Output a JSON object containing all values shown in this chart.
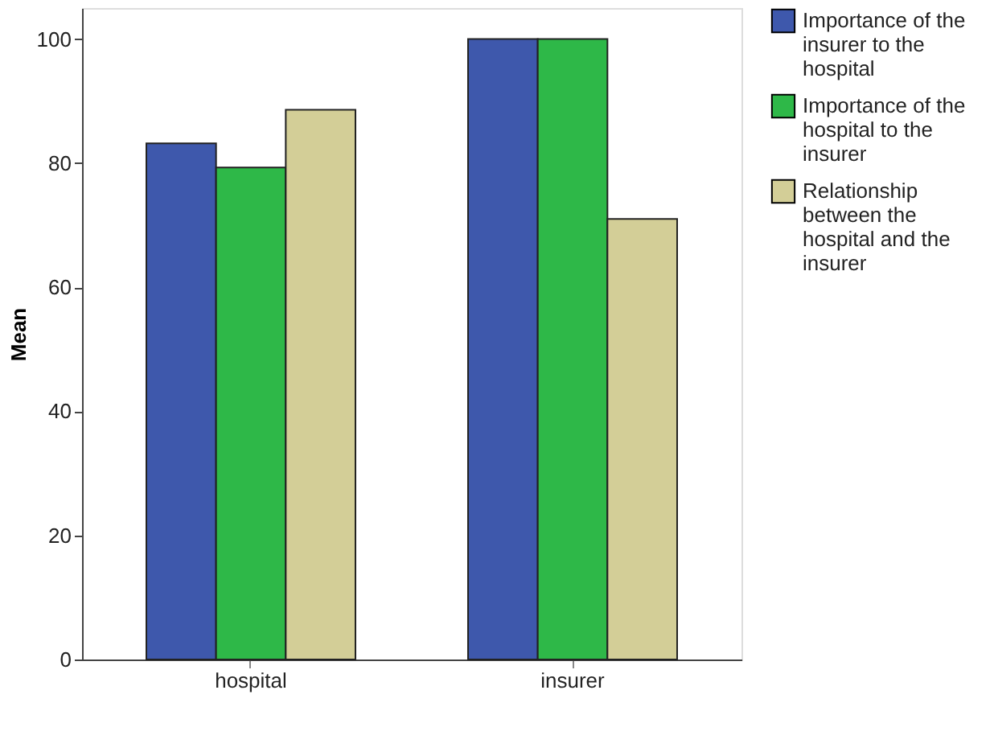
{
  "chart_data": {
    "type": "bar",
    "ylabel": "Mean",
    "categories": [
      "hospital",
      "insurer"
    ],
    "series": [
      {
        "name": "Importance of the insurer to the hospital",
        "color": "#3e58ac",
        "values": [
          83.2,
          100
        ]
      },
      {
        "name": "Importance of the hospital to the insurer",
        "color": "#2eb848",
        "values": [
          79.3,
          100
        ]
      },
      {
        "name": "Relationship between the hospital and the insurer",
        "color": "#d3ce97",
        "values": [
          88.6,
          71.0
        ]
      }
    ],
    "ylim": [
      0,
      105
    ],
    "yticks": [
      0,
      20,
      40,
      60,
      80,
      100
    ],
    "grid": false,
    "legend": "right"
  }
}
